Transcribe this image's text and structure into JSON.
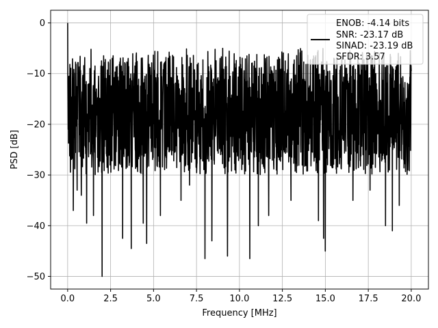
{
  "chart_data": {
    "type": "line",
    "title": "",
    "xlabel": "Frequency [MHz]",
    "ylabel": "PSD [dB]",
    "xlim": [
      -0.99,
      21.0
    ],
    "ylim": [
      -52.5,
      2.5
    ],
    "xticks": [
      0.0,
      2.5,
      5.0,
      7.5,
      10.0,
      12.5,
      15.0,
      17.5,
      20.0
    ],
    "xtick_labels": [
      "0.0",
      "2.5",
      "5.0",
      "7.5",
      "10.0",
      "12.5",
      "15.0",
      "17.5",
      "20.0"
    ],
    "yticks": [
      0,
      -10,
      -20,
      -30,
      -40,
      -50
    ],
    "ytick_labels": [
      "0",
      "−10",
      "−20",
      "−30",
      "−40",
      "−50"
    ],
    "grid": true,
    "legend_position": "top-right",
    "legend_lines": [
      "ENOB: -4.14 bits",
      "SNR: -23.17 dB",
      "SINAD: -23.19 dB",
      "SFDR: 3.57"
    ],
    "series": [
      {
        "color": "#000000",
        "description": "noise-like spectrum, dense",
        "x_range": [
          0.0,
          20.0
        ],
        "peak": [
          0.0,
          0.0
        ],
        "baseline_level": -20,
        "upper_envelope_range": [
          -12,
          -5
        ],
        "lower_envelope_range": [
          -30,
          -25
        ],
        "deep_dips": [
          [
            0.33,
            -37
          ],
          [
            0.55,
            -33
          ],
          [
            0.8,
            -34
          ],
          [
            1.1,
            -39.5
          ],
          [
            1.5,
            -38
          ],
          [
            2.0,
            -50
          ],
          [
            3.2,
            -42.5
          ],
          [
            3.7,
            -44.5
          ],
          [
            4.4,
            -39.5
          ],
          [
            4.6,
            -43.5
          ],
          [
            5.4,
            -38
          ],
          [
            6.6,
            -35
          ],
          [
            7.1,
            -32
          ],
          [
            8.0,
            -46.5
          ],
          [
            8.4,
            -43
          ],
          [
            9.3,
            -46
          ],
          [
            10.6,
            -46.5
          ],
          [
            11.1,
            -40
          ],
          [
            11.7,
            -38
          ],
          [
            13.0,
            -35
          ],
          [
            14.6,
            -39
          ],
          [
            14.9,
            -42.5
          ],
          [
            15.0,
            -45
          ],
          [
            16.6,
            -35
          ],
          [
            17.6,
            -33
          ],
          [
            18.5,
            -40
          ],
          [
            18.9,
            -41
          ],
          [
            19.3,
            -36
          ],
          [
            19.8,
            -29
          ]
        ]
      }
    ]
  }
}
